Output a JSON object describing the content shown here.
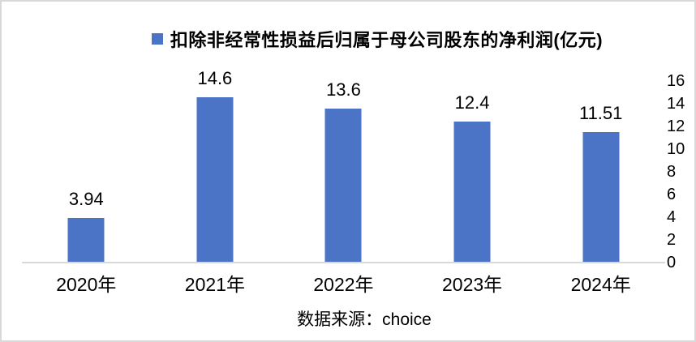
{
  "chart_data": {
    "type": "bar",
    "legend": "扣除非经常性损益后归属于母公司股东的净利润(亿元)",
    "categories": [
      "2020年",
      "2021年",
      "2022年",
      "2023年",
      "2024年"
    ],
    "values": [
      3.94,
      14.6,
      13.6,
      12.4,
      11.51
    ],
    "value_labels": [
      "3.94",
      "14.6",
      "13.6",
      "12.4",
      "11.51"
    ],
    "ylim": [
      0,
      16
    ],
    "y_ticks": [
      0,
      2,
      4,
      6,
      8,
      10,
      12,
      14,
      16
    ],
    "y_axis_side": "right",
    "grid": false,
    "legend_position": "top",
    "bar_color": "#4b74c6",
    "axis_line_color": "#d9d9d9",
    "text_color": "#000000"
  },
  "source": {
    "text": "数据来源：choice"
  }
}
